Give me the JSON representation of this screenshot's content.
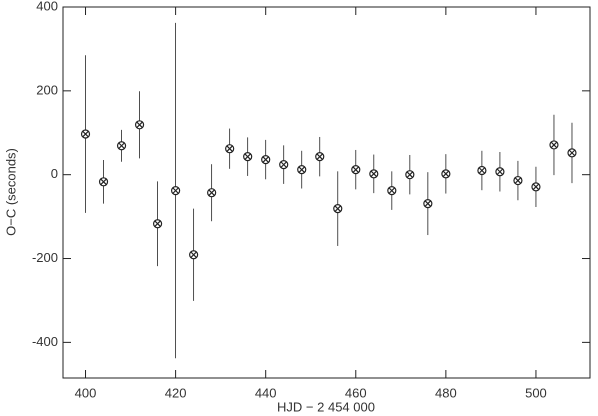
{
  "chart_data": {
    "type": "scatter",
    "xlabel": "HJD − 2 454 000",
    "ylabel": "O−C (seconds)",
    "x": [
      400,
      404,
      408,
      412,
      416,
      420,
      424,
      428,
      432,
      436,
      440,
      444,
      448,
      452,
      456,
      460,
      464,
      468,
      472,
      476,
      480,
      488,
      492,
      496,
      500,
      504,
      508
    ],
    "values": [
      97,
      -17,
      69,
      119,
      -117,
      -38,
      -191,
      -43,
      62,
      43,
      36,
      24,
      12,
      43,
      -81,
      12,
      2,
      -38,
      0,
      -69,
      2,
      10,
      7,
      -14,
      -29,
      71,
      52
    ],
    "errors": [
      188,
      52,
      38,
      80,
      101,
      400,
      110,
      68,
      48,
      46,
      47,
      46,
      45,
      47,
      89,
      47,
      46,
      46,
      47,
      75,
      47,
      47,
      47,
      47,
      48,
      72,
      72
    ],
    "color": "#222222",
    "xlim": [
      395,
      512
    ],
    "ylim": [
      -485,
      400
    ],
    "xticks": [
      400,
      420,
      440,
      460,
      480,
      500
    ],
    "yticks": [
      -400,
      -200,
      0,
      200,
      400
    ]
  }
}
